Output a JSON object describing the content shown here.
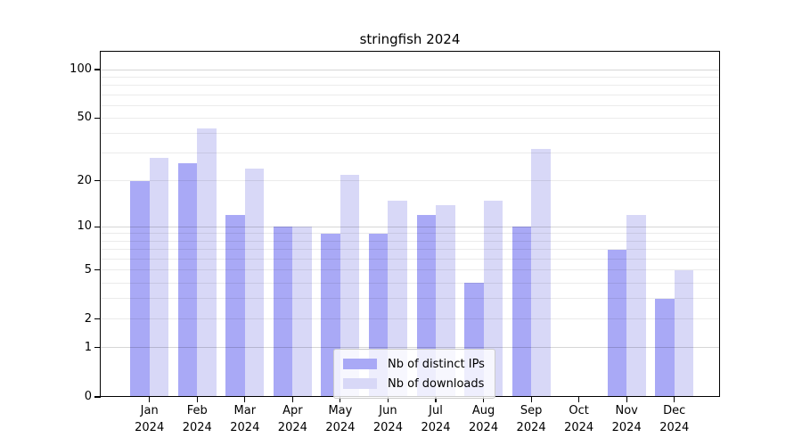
{
  "chart_data": {
    "type": "bar",
    "title": "stringfish 2024",
    "categories": [
      "Jan 2024",
      "Feb 2024",
      "Mar 2024",
      "Apr 2024",
      "May 2024",
      "Jun 2024",
      "Jul 2024",
      "Aug 2024",
      "Sep 2024",
      "Oct 2024",
      "Nov 2024",
      "Dec 2024"
    ],
    "series": [
      {
        "name": "Nb of distinct IPs",
        "color": "#a9a9f6",
        "values": [
          20,
          26,
          12,
          10,
          9,
          9,
          12,
          4,
          10,
          0,
          7,
          3
        ]
      },
      {
        "name": "Nb of downloads",
        "color": "#d8d8f7",
        "values": [
          28,
          43,
          24,
          10,
          22,
          15,
          14,
          15,
          32,
          0,
          12,
          5
        ]
      }
    ],
    "xlabel": "",
    "ylabel": "",
    "y_axis": {
      "scale": "log10(value+1)",
      "tick_labels": [
        0,
        1,
        2,
        5,
        10,
        20,
        50,
        100
      ],
      "minor_gridlines": [
        2,
        3,
        4,
        5,
        6,
        7,
        8,
        9,
        20,
        30,
        40,
        50,
        60,
        70,
        80,
        90
      ],
      "major_gridlines": [
        1,
        10,
        100
      ],
      "range": [
        0,
        128
      ]
    },
    "grid": true,
    "legend_position": "lower center"
  }
}
